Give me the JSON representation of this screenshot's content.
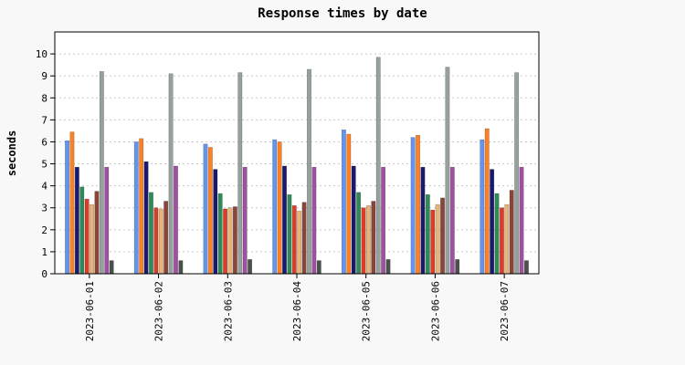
{
  "chart_data": {
    "type": "bar",
    "title": "Response times by date",
    "xlabel": "",
    "ylabel": "seconds",
    "ylim": [
      0,
      11
    ],
    "yticks": [
      0,
      1,
      2,
      3,
      4,
      5,
      6,
      7,
      8,
      9,
      10
    ],
    "grid": "horizontal dotted",
    "legend": "none",
    "categories": [
      "2023-06-01",
      "2023-06-02",
      "2023-06-03",
      "2023-06-04",
      "2023-06-05",
      "2023-06-06",
      "2023-06-07"
    ],
    "series": [
      {
        "color": "#6495ed",
        "values": [
          6.05,
          6.0,
          5.9,
          6.1,
          6.55,
          6.2,
          6.1
        ]
      },
      {
        "color": "#ff7f24",
        "values": [
          6.45,
          6.15,
          5.75,
          6.0,
          6.35,
          6.3,
          6.6
        ]
      },
      {
        "color": "#191970",
        "values": [
          4.85,
          5.1,
          4.75,
          4.9,
          4.9,
          4.85,
          4.75
        ]
      },
      {
        "color": "#2e8b57",
        "values": [
          3.95,
          3.7,
          3.65,
          3.6,
          3.7,
          3.6,
          3.65
        ]
      },
      {
        "color": "#dc3c28",
        "values": [
          3.4,
          3.0,
          2.95,
          3.1,
          3.0,
          2.9,
          3.0
        ]
      },
      {
        "color": "#e6b478",
        "values": [
          3.15,
          2.95,
          3.0,
          2.85,
          3.1,
          3.15,
          3.15
        ]
      },
      {
        "color": "#8b4538",
        "values": [
          3.75,
          3.3,
          3.05,
          3.25,
          3.3,
          3.45,
          3.8
        ]
      },
      {
        "color": "#96a09c",
        "values": [
          9.2,
          9.1,
          9.15,
          9.3,
          9.85,
          9.4,
          9.15
        ]
      },
      {
        "color": "#a050a0",
        "values": [
          4.85,
          4.9,
          4.85,
          4.85,
          4.85,
          4.85,
          4.85
        ]
      },
      {
        "color": "#4a4f50",
        "values": [
          0.6,
          0.6,
          0.65,
          0.6,
          0.65,
          0.65,
          0.6
        ]
      }
    ]
  }
}
